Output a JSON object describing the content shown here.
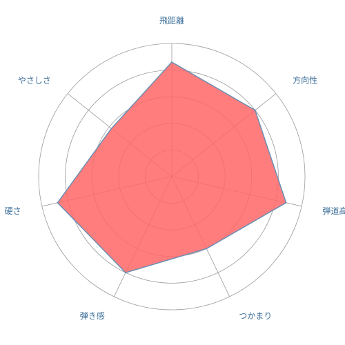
{
  "chart_data": {
    "type": "radar",
    "categories": [
      "飛距離",
      "方向性",
      "弾道高さ",
      "つかまり",
      "弾き感",
      "硬さ",
      "やさしさ"
    ],
    "series": [
      {
        "values": [
          4.3,
          4.0,
          4.4,
          3.0,
          4.0,
          4.4,
          2.9
        ]
      }
    ],
    "rlim": [
      0,
      5
    ],
    "rings": 5,
    "fill_color": "#ff6666",
    "fill_opacity": 0.85,
    "stroke_color": "#6b8fb3",
    "grid_color": "#9a9a9a",
    "label_color": "#3b6e9a"
  }
}
